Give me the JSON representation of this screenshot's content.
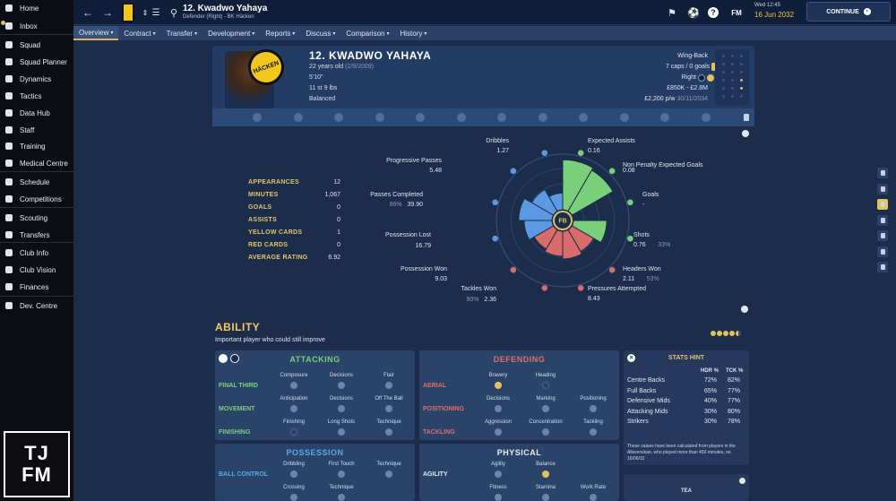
{
  "sidebar": {
    "items": [
      {
        "label": "Home",
        "icon": "home-icon"
      },
      {
        "label": "Inbox",
        "icon": "inbox-icon"
      },
      {
        "label": "Squad",
        "icon": "squad-icon"
      },
      {
        "label": "Squad Planner",
        "icon": "planner-icon"
      },
      {
        "label": "Dynamics",
        "icon": "dynamics-icon"
      },
      {
        "label": "Tactics",
        "icon": "tactics-icon"
      },
      {
        "label": "Data Hub",
        "icon": "data-hub-icon"
      },
      {
        "label": "Staff",
        "icon": "staff-icon"
      },
      {
        "label": "Training",
        "icon": "training-icon"
      },
      {
        "label": "Medical Centre",
        "icon": "medical-icon"
      },
      {
        "label": "Schedule",
        "icon": "schedule-icon"
      },
      {
        "label": "Competitions",
        "icon": "trophy-icon"
      },
      {
        "label": "Scouting",
        "icon": "scouting-icon"
      },
      {
        "label": "Transfers",
        "icon": "transfers-icon"
      },
      {
        "label": "Club Info",
        "icon": "club-info-icon"
      },
      {
        "label": "Club Vision",
        "icon": "club-vision-icon"
      },
      {
        "label": "Finances",
        "icon": "finances-icon"
      },
      {
        "label": "Dev. Centre",
        "icon": "dev-centre-icon"
      }
    ],
    "logo_line1": "TJ",
    "logo_line2": "FM"
  },
  "topbar": {
    "player_name": "12. Kwadwo Yahaya",
    "player_sub": "Defender (Right) - BK Häcken",
    "fm_label": "FM",
    "date_small": "Wed 12:45",
    "date_main": "16 Jun 2032",
    "continue_label": "CONTINUE"
  },
  "tabs": [
    "Overview",
    "Contract",
    "Transfer",
    "Development",
    "Reports",
    "Discuss",
    "Comparison",
    "History"
  ],
  "header": {
    "name": "12. KWADWO YAHAYA",
    "age": "22 years old",
    "dob": "(2/9/2009)",
    "height": "5'10\"",
    "weight": "11 st 9 lbs",
    "personality": "Balanced",
    "club_badge": "HÄCKEN",
    "position": "Wing-Back",
    "caps": "7 caps / 0 goals",
    "foot": "Right",
    "value": "£850K - £2.8M",
    "wage": "£2,200 p/w",
    "contract_end": "30/11/2034"
  },
  "season_stats": [
    {
      "label": "APPEARANCES",
      "value": "12"
    },
    {
      "label": "MINUTES",
      "value": "1,067"
    },
    {
      "label": "GOALS",
      "value": "0"
    },
    {
      "label": "ASSISTS",
      "value": "0"
    },
    {
      "label": "YELLOW CARDS",
      "value": "1"
    },
    {
      "label": "RED CARDS",
      "value": "0"
    },
    {
      "label": "AVERAGE RATING",
      "value": "6.92"
    }
  ],
  "chart_data": {
    "type": "radar",
    "center_label": "FB",
    "metrics": [
      {
        "name": "Expected Assists",
        "value": "0.16",
        "pct": ""
      },
      {
        "name": "Non Penalty Expected Goals",
        "value": "0.08",
        "pct": ""
      },
      {
        "name": "Goals",
        "value": "-",
        "pct": ""
      },
      {
        "name": "Shots",
        "value": "0.76",
        "pct": "33%"
      },
      {
        "name": "Headers Won",
        "value": "2.11",
        "pct": "53%"
      },
      {
        "name": "Pressures Attempted",
        "value": "8.43",
        "pct": ""
      },
      {
        "name": "Tackles Won",
        "value": "2.36",
        "pct": "90%"
      },
      {
        "name": "Possession Won",
        "value": "9.03",
        "pct": ""
      },
      {
        "name": "Possession Lost",
        "value": "16.79",
        "pct": ""
      },
      {
        "name": "Passes Completed",
        "value": "39.90",
        "pct": "86%"
      },
      {
        "name": "Progressive Passes",
        "value": "5.48",
        "pct": ""
      },
      {
        "name": "Dribbles",
        "value": "1.27",
        "pct": ""
      }
    ],
    "segments": [
      {
        "name": "Expected Assists",
        "level": 0.9,
        "color": "#7ad07a"
      },
      {
        "name": "Non Penalty Expected Goals",
        "level": 0.85,
        "color": "#7ad07a"
      },
      {
        "name": "Goals",
        "level": 0.0,
        "color": "#7ad07a"
      },
      {
        "name": "Shots",
        "level": 0.6,
        "color": "#7ad07a"
      },
      {
        "name": "Headers Won",
        "level": 0.45,
        "color": "#d96b6b"
      },
      {
        "name": "Pressures Attempted",
        "level": 0.5,
        "color": "#d96b6b"
      },
      {
        "name": "Tackles Won",
        "level": 0.45,
        "color": "#d96b6b"
      },
      {
        "name": "Possession Won",
        "level": 0.4,
        "color": "#d96b6b"
      },
      {
        "name": "Possession Lost",
        "level": 0.5,
        "color": "#5b9ae3"
      },
      {
        "name": "Passes Completed",
        "level": 0.6,
        "color": "#5b9ae3"
      },
      {
        "name": "Progressive Passes",
        "level": 0.45,
        "color": "#5b9ae3"
      },
      {
        "name": "Dribbles",
        "level": 0.3,
        "color": "#5b9ae3"
      }
    ]
  },
  "ability": {
    "title": "ABILITY",
    "subtitle": "Important player who could still improve",
    "stars": 4.5
  },
  "attacking": {
    "title": "ATTACKING",
    "groups": [
      {
        "name": "FINAL THIRD",
        "attrs": [
          "Composure",
          "Decisions",
          "Flair"
        ]
      },
      {
        "name": "MOVEMENT",
        "attrs": [
          "Anticipation",
          "Decisions",
          "Off The Ball"
        ]
      },
      {
        "name": "FINISHING",
        "attrs": [
          "Finishing",
          "Long Shots",
          "Technique"
        ]
      }
    ]
  },
  "defending": {
    "title": "DEFENDING",
    "groups": [
      {
        "name": "AERIAL",
        "attrs": [
          "Bravery",
          "Heading"
        ]
      },
      {
        "name": "POSITIONING",
        "attrs": [
          "Decisions",
          "Marking",
          "Positioning"
        ]
      },
      {
        "name": "TACKLING",
        "attrs": [
          "Aggression",
          "Concentration",
          "Tackling"
        ]
      }
    ]
  },
  "possession": {
    "title": "POSSESSION",
    "groups": [
      {
        "name": "BALL CONTROL",
        "attrs": [
          "Dribbling",
          "First Touch",
          "Technique"
        ]
      },
      {
        "name": "",
        "attrs": [
          "Crossing",
          "Technique"
        ]
      }
    ]
  },
  "physical": {
    "title": "PHYSICAL",
    "groups": [
      {
        "name": "AGILITY",
        "attrs": [
          "Agility",
          "Balance"
        ]
      },
      {
        "name": "",
        "attrs": [
          "Fitness",
          "Stamina",
          "Work Rate"
        ]
      }
    ]
  },
  "stats_hint": {
    "title": "STATS HINT",
    "col1": "HDR %",
    "col2": "TCK %",
    "rows": [
      {
        "pos": "Centre Backs",
        "hdr": "72%",
        "tck": "82%"
      },
      {
        "pos": "Full Backs",
        "hdr": "65%",
        "tck": "77%"
      },
      {
        "pos": "Defensive Mids",
        "hdr": "40%",
        "tck": "77%"
      },
      {
        "pos": "Attacking Mids",
        "hdr": "30%",
        "tck": "80%"
      },
      {
        "pos": "Strikers",
        "hdr": "30%",
        "tck": "78%"
      }
    ],
    "note": "These values have been calculated from players in the Allsvenskan, who played more than 450 minutes, on 16/06/32"
  },
  "tea_label": "TEA"
}
